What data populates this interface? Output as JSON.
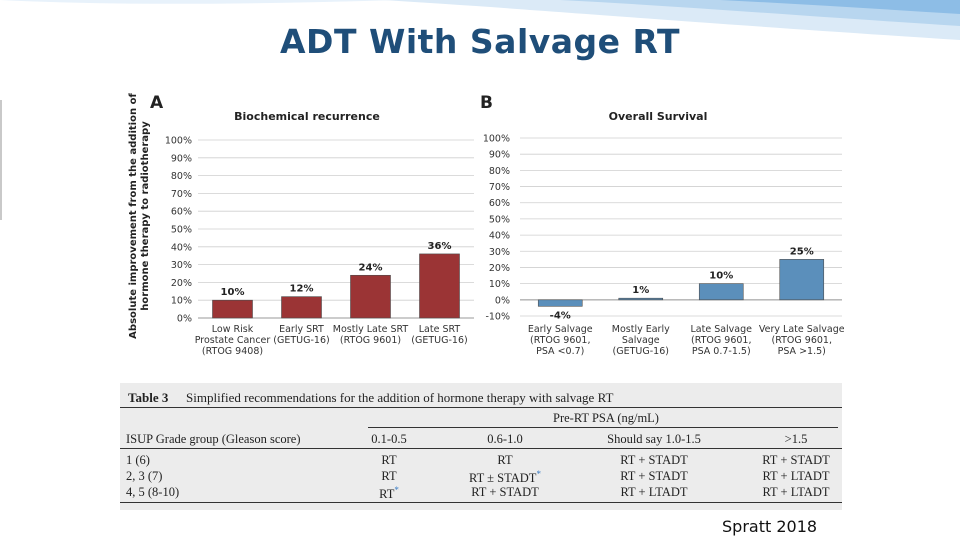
{
  "slide": {
    "title": "ADT With Salvage RT",
    "citation": "Spratt 2018"
  },
  "colors": {
    "title": "#1f4e79",
    "bar_a": "#9b3435",
    "bar_b": "#5b8fbb",
    "table_bg": "#ececec"
  },
  "chart_data": [
    {
      "type": "bar",
      "panel_label": "A",
      "title": "Biochemical recurrence",
      "ylabel": "Absolute improvement from the addition of hormone therapy to radiotherapy",
      "ylim": [
        0,
        100
      ],
      "yticks": [
        "100%",
        "90%",
        "80%",
        "70%",
        "60%",
        "50%",
        "40%",
        "30%",
        "20%",
        "10%",
        "0%"
      ],
      "categories": [
        [
          "Low Risk",
          "Prostate Cancer",
          "(RTOG 9408)"
        ],
        [
          "Early SRT",
          "(GETUG-16)"
        ],
        [
          "Mostly Late SRT",
          "(RTOG 9601)"
        ],
        [
          "Late SRT",
          "(GETUG-16)"
        ]
      ],
      "values": [
        10,
        12,
        24,
        36
      ],
      "data_labels": [
        "10%",
        "12%",
        "24%",
        "36%"
      ]
    },
    {
      "type": "bar",
      "panel_label": "B",
      "title": "Overall Survival",
      "ylim": [
        -10,
        100
      ],
      "yticks": [
        "100%",
        "90%",
        "80%",
        "70%",
        "60%",
        "50%",
        "40%",
        "30%",
        "20%",
        "10%",
        "0%",
        "-10%"
      ],
      "categories": [
        [
          "Early Salvage",
          "(RTOG 9601,",
          "PSA <0.7)"
        ],
        [
          "Mostly Early",
          "Salvage",
          "(GETUG-16)"
        ],
        [
          "Late Salvage",
          "(RTOG 9601,",
          "PSA 0.7-1.5)"
        ],
        [
          "Very Late Salvage",
          "(RTOG 9601,",
          "PSA >1.5)"
        ]
      ],
      "values": [
        -4,
        1,
        10,
        25
      ],
      "data_labels": [
        "-4%",
        "1%",
        "10%",
        "25%"
      ]
    }
  ],
  "table": {
    "label": "Table 3",
    "title": "Simplified recommendations for the addition of hormone therapy with salvage RT",
    "group_header": "Pre-RT PSA (ng/mL)",
    "row_header": "ISUP Grade group (Gleason score)",
    "columns": [
      "0.1-0.5",
      "0.6-1.0",
      "Should say 1.0-1.5",
      ">1.5"
    ],
    "rows": [
      {
        "label": "1 (6)",
        "cells": [
          "RT",
          "RT",
          "RT + STADT",
          "RT + STADT"
        ]
      },
      {
        "label": "2, 3 (7)",
        "cells": [
          "RT",
          "RT ± STADT",
          "RT + STADT",
          "RT + LTADT"
        ]
      },
      {
        "label": "4, 5 (8-10)",
        "cells": [
          "RT",
          "RT + STADT",
          "RT + LTADT",
          "RT + LTADT"
        ]
      }
    ],
    "footnote_mark": "*"
  }
}
